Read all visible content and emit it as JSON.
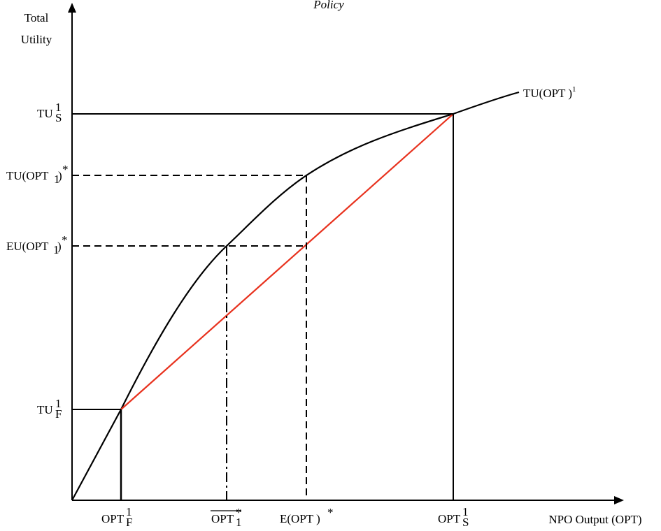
{
  "diagram": {
    "title": "Policy",
    "y_axis_label": [
      "Total",
      "Utility"
    ],
    "x_axis_label": "NPO Output (OPT)",
    "curve_label": {
      "base": "TU(OPT )",
      "sup": "1"
    },
    "y_labels": {
      "tu_s": {
        "base": "TU",
        "sub": "S",
        "sup": "1"
      },
      "tu_opt1": {
        "base": "TU(OPT",
        "sub": "1",
        "tail": ")",
        "sup": "*"
      },
      "eu_opt1": {
        "base": "EU(OPT",
        "sub": "1",
        "tail": ")",
        "sup": "*"
      },
      "tu_f": {
        "base": "TU",
        "sub": "F",
        "sup": "1"
      }
    },
    "x_labels": {
      "opt_f": {
        "base": "OPT",
        "sub": "F",
        "sup": "1"
      },
      "opt1_bar": {
        "base": "OPT",
        "sub": "1",
        "sup": "*"
      },
      "e_opt": {
        "base": "E(OPT )",
        "sup": "*"
      },
      "opt_s": {
        "base": "OPT",
        "sub": "S",
        "sup": "1"
      }
    },
    "colors": {
      "line": "#000000",
      "expected_utility_line": "#e8321e"
    }
  }
}
